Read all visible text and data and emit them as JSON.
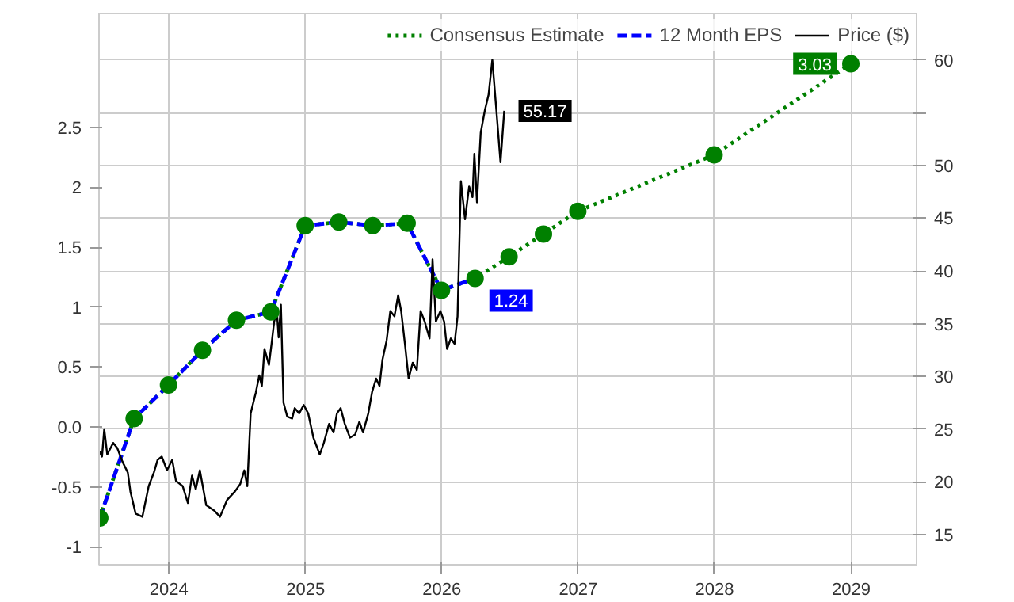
{
  "chart_data": {
    "type": "line",
    "x": [
      "2023-06-30",
      "2023-09-30",
      "2023-12-31",
      "2024-03-31",
      "2024-06-30",
      "2024-09-30",
      "2024-12-31",
      "2025-03-31",
      "2025-06-30",
      "2025-09-30",
      "2025-12-31",
      "2026-03-31",
      "2026-06-30",
      "2026-09-30",
      "2026-12-31",
      "2027-12-31",
      "2028-12-31"
    ],
    "series": [
      {
        "name": "Consensus Estimate",
        "color": "#008000",
        "line_style": "dotted",
        "marker": "circle",
        "values": [
          -0.76,
          0.07,
          0.35,
          0.64,
          0.89,
          0.96,
          1.68,
          1.71,
          1.68,
          1.7,
          1.14,
          1.24,
          1.42,
          1.61,
          1.8,
          2.27,
          3.03
        ],
        "value_labels": [
          null,
          null,
          null,
          null,
          null,
          null,
          null,
          null,
          null,
          null,
          null,
          null,
          null,
          null,
          null,
          null,
          "3.03"
        ]
      },
      {
        "name": "12 Month EPS",
        "color": "#0000ff",
        "line_style": "dashed",
        "marker": "none",
        "values": [
          -0.76,
          0.07,
          0.35,
          0.64,
          0.89,
          0.96,
          1.68,
          1.71,
          1.68,
          1.7,
          1.14,
          1.24,
          null,
          null,
          null,
          null,
          null
        ],
        "value_labels": [
          null,
          null,
          null,
          null,
          null,
          null,
          null,
          null,
          null,
          null,
          null,
          "1.24",
          null,
          null,
          null,
          null,
          null
        ]
      },
      {
        "name": "Price ($)",
        "color": "#000000",
        "line_style": "solid",
        "marker": "none",
        "axis": "y2",
        "x": [
          "2023-06-29",
          "2023-07-06",
          "2023-07-12",
          "2023-07-20",
          "2023-08-05",
          "2023-08-16",
          "2023-08-30",
          "2023-09-13",
          "2023-09-20",
          "2023-10-04",
          "2023-10-22",
          "2023-11-08",
          "2023-11-22",
          "2023-12-02",
          "2023-12-13",
          "2023-12-27",
          "2024-01-10",
          "2024-01-20",
          "2024-02-07",
          "2024-02-21",
          "2024-03-03",
          "2024-03-13",
          "2024-03-24",
          "2024-04-10",
          "2024-05-01",
          "2024-05-17",
          "2024-06-05",
          "2024-06-26",
          "2024-07-10",
          "2024-07-21",
          "2024-07-29",
          "2024-08-07",
          "2024-08-21",
          "2024-08-30",
          "2024-09-06",
          "2024-09-13",
          "2024-09-25",
          "2024-10-02",
          "2024-10-09",
          "2024-10-16",
          "2024-10-21",
          "2024-10-27",
          "2024-11-03",
          "2024-11-13",
          "2024-11-26",
          "2024-12-03",
          "2024-12-15",
          "2024-12-27",
          "2025-01-08",
          "2025-01-22",
          "2025-02-08",
          "2025-02-19",
          "2025-03-05",
          "2025-03-17",
          "2025-03-26",
          "2025-04-05",
          "2025-04-16",
          "2025-04-30",
          "2025-05-14",
          "2025-05-25",
          "2025-06-04",
          "2025-06-18",
          "2025-06-28",
          "2025-07-09",
          "2025-07-18",
          "2025-07-26",
          "2025-08-06",
          "2025-08-16",
          "2025-08-27",
          "2025-09-06",
          "2025-09-14",
          "2025-09-24",
          "2025-10-04",
          "2025-10-15",
          "2025-10-26",
          "2025-11-05",
          "2025-11-16",
          "2025-11-29",
          "2025-12-07",
          "2025-12-16",
          "2025-12-28",
          "2026-01-07",
          "2026-01-15",
          "2026-01-25",
          "2026-02-04",
          "2026-02-12",
          "2026-02-21",
          "2026-03-04",
          "2026-03-15",
          "2026-03-24",
          "2026-03-29",
          "2026-04-05",
          "2026-04-15",
          "2026-04-26",
          "2026-05-06",
          "2026-05-16",
          "2026-05-27",
          "2026-06-07",
          "2026-06-17"
        ],
        "values": [
          22.9,
          22.4,
          25.0,
          22.6,
          23.7,
          23.2,
          21.9,
          20.9,
          19.1,
          17.0,
          16.7,
          19.6,
          20.9,
          22.1,
          22.4,
          21.1,
          22.1,
          20.1,
          19.6,
          18.0,
          20.6,
          19.3,
          21.1,
          17.8,
          17.3,
          16.7,
          18.3,
          19.1,
          19.8,
          21.1,
          19.6,
          26.5,
          28.5,
          30.1,
          29.1,
          32.6,
          31.1,
          33.1,
          35.2,
          36.2,
          33.7,
          36.8,
          27.5,
          26.2,
          26.0,
          27.0,
          26.5,
          27.3,
          26.5,
          24.2,
          22.6,
          23.7,
          25.5,
          24.7,
          26.5,
          27.0,
          25.5,
          24.2,
          24.5,
          25.7,
          24.7,
          26.5,
          28.5,
          29.8,
          29.1,
          31.6,
          33.4,
          36.2,
          35.7,
          37.7,
          36.2,
          33.1,
          29.8,
          31.3,
          30.6,
          36.2,
          35.2,
          33.6,
          41.1,
          35.2,
          36.2,
          35.2,
          32.6,
          33.6,
          33.1,
          35.7,
          48.5,
          44.9,
          48.0,
          47.0,
          51.1,
          46.5,
          53.1,
          55.2,
          56.7,
          60.0,
          55.2,
          50.3,
          55.17
        ],
        "value_labels": [
          null,
          null,
          null,
          null,
          null,
          null,
          null,
          null,
          null,
          null,
          null,
          null,
          null,
          null,
          null,
          null,
          null,
          null,
          null,
          null,
          null,
          null,
          null,
          null,
          null,
          null,
          null,
          null,
          null,
          null,
          null,
          null,
          null,
          null,
          null,
          null,
          null,
          null,
          null,
          null,
          null,
          null,
          null,
          null,
          null,
          null,
          null,
          null,
          null,
          null,
          null,
          null,
          null,
          null,
          null,
          null,
          null,
          null,
          null,
          null,
          null,
          null,
          null,
          null,
          null,
          null,
          null,
          null,
          null,
          null,
          null,
          null,
          null,
          null,
          null,
          null,
          null,
          null,
          null,
          null,
          null,
          null,
          null,
          null,
          null,
          null,
          null,
          null,
          null,
          null,
          null,
          null,
          null,
          null,
          null,
          null,
          null,
          null,
          "55.17"
        ]
      }
    ],
    "xlim": [
      "2023-06-28",
      "2029-06-25"
    ],
    "xticks": [
      {
        "value": "2024-01-01",
        "label": "2024"
      },
      {
        "value": "2025-01-01",
        "label": "2025"
      },
      {
        "value": "2026-01-01",
        "label": "2026"
      },
      {
        "value": "2027-01-01",
        "label": "2027"
      },
      {
        "value": "2028-01-01",
        "label": "2028"
      },
      {
        "value": "2029-01-01",
        "label": "2029"
      }
    ],
    "ylim": [
      -1.15,
      3.45
    ],
    "yticks": [
      -1,
      -0.5,
      {
        "value": 0,
        "label": "0.0"
      },
      0.5,
      1,
      1.5,
      2,
      2.5
    ],
    "y2lim": [
      12.15,
      64.4
    ],
    "y2ticks": [
      15,
      20,
      25,
      30,
      35,
      40,
      45,
      50,
      {
        "value": 55,
        "label": null
      },
      60
    ],
    "grid": true,
    "legend": "top right"
  }
}
